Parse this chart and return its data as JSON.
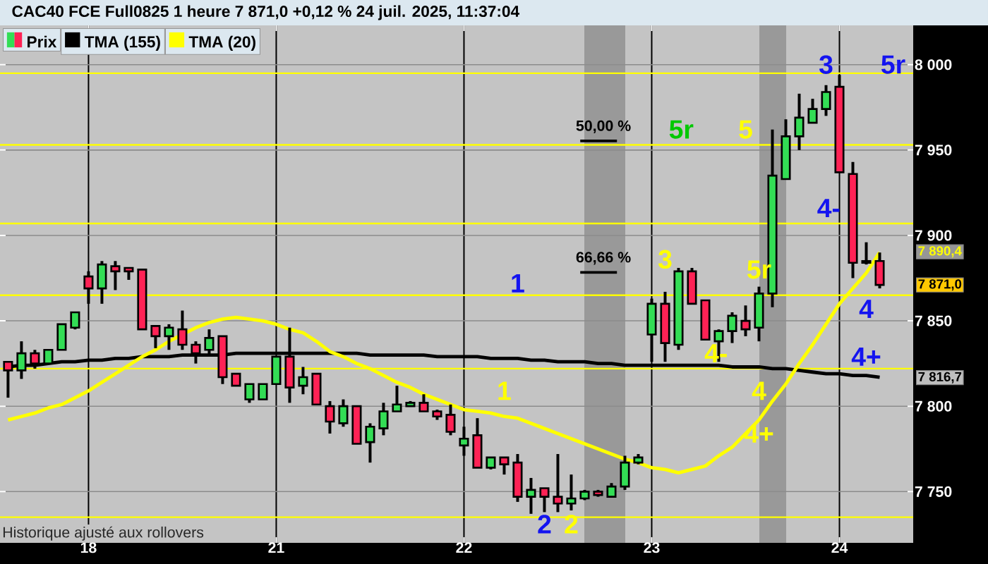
{
  "chart_data": {
    "type": "candlestick",
    "title": "CAC40 FCE Full0825 1 heure 7 871,0 +0,12 % 24 juil. 2025, 11:37:04",
    "categories": [
      null,
      null,
      null,
      null,
      null,
      null,
      "18",
      null,
      null,
      null,
      null,
      null,
      null,
      null,
      null,
      null,
      null,
      null,
      null,
      null,
      "21",
      null,
      null,
      null,
      null,
      null,
      null,
      null,
      null,
      null,
      null,
      null,
      null,
      null,
      "22",
      null,
      null,
      null,
      null,
      null,
      null,
      null,
      null,
      null,
      null,
      null,
      null,
      null,
      "23",
      null,
      null,
      null,
      null,
      null,
      null,
      null,
      null,
      null,
      null,
      null,
      null,
      null,
      "24",
      null,
      null,
      null
    ],
    "ylim": [
      7720,
      8023
    ],
    "yticks": [
      {
        "value": 7750,
        "label": "7 750"
      },
      {
        "value": 7800,
        "label": "7 800"
      },
      {
        "value": 7850,
        "label": "7 850"
      },
      {
        "value": 7900,
        "label": "7 900"
      },
      {
        "value": 7950,
        "label": "7 950"
      },
      {
        "value": 8000,
        "label": "8 000"
      }
    ],
    "grid": true,
    "legend": "top left",
    "series": [
      {
        "name": "Prix",
        "colors": [
          "#ff2255",
          "#33dd55",
          "#ff2255",
          "#33dd55",
          "#33dd55",
          "#33dd55",
          "#ff2255",
          "#33dd55",
          "#ff2255",
          "#ff2255",
          "#ff2255",
          "#ff2255",
          "#33dd55",
          "#ff2255",
          "#ff2255",
          "#33dd55",
          "#ff2255",
          "#ff2255",
          "#33dd55",
          "#33dd55",
          "#33dd55",
          "#ff2255",
          "#33dd55",
          "#ff2255",
          "#ff2255",
          "#33dd55",
          "#ff2255",
          "#33dd55",
          "#33dd55",
          "#33dd55",
          "#33dd55",
          "#ff2255",
          "#ff2255",
          "#ff2255",
          "#33dd55",
          "#ff2255",
          "#33dd55",
          "#ff2255",
          "#ff2255",
          "#33dd55",
          "#ff2255",
          "#ff2255",
          "#33dd55",
          "#33dd55",
          "#ff2255",
          "#33dd55",
          "#33dd55",
          "#33dd55",
          "#33dd55",
          "#ff2255",
          "#33dd55",
          "#ff2255",
          "#ff2255",
          "#33dd55",
          "#33dd55",
          "#ff2255",
          "#33dd55",
          "#33dd55",
          "#33dd55",
          "#33dd55",
          "#33dd55",
          "#33dd55",
          "#ff2255",
          "#ff2255",
          "#ff2255",
          "#ff2255"
        ],
        "ohlc": [
          [
            7826,
            7826,
            7805,
            7821
          ],
          [
            7821,
            7838,
            7816,
            7831
          ],
          [
            7831,
            7833,
            7822,
            7825
          ],
          [
            7825,
            7833,
            7825,
            7833
          ],
          [
            7833,
            7848,
            7833,
            7848
          ],
          [
            7846,
            7855,
            7845,
            7855
          ],
          [
            7876,
            7879,
            7860,
            7869
          ],
          [
            7869,
            7885,
            7860,
            7883
          ],
          [
            7882,
            7885,
            7868,
            7879
          ],
          [
            7881,
            7881,
            7874,
            7879
          ],
          [
            7880,
            7880,
            7845,
            7845
          ],
          [
            7847,
            7847,
            7834,
            7841
          ],
          [
            7841,
            7848,
            7833,
            7846
          ],
          [
            7845,
            7856,
            7833,
            7836
          ],
          [
            7836,
            7838,
            7825,
            7831
          ],
          [
            7833,
            7845,
            7830,
            7840
          ],
          [
            7841,
            7841,
            7813,
            7817
          ],
          [
            7819,
            7819,
            7812,
            7812
          ],
          [
            7804,
            7813,
            7802,
            7813
          ],
          [
            7804,
            7813,
            7804,
            7813
          ],
          [
            7813,
            7829,
            7813,
            7829
          ],
          [
            7829,
            7846,
            7802,
            7811
          ],
          [
            7812,
            7823,
            7807,
            7817
          ],
          [
            7819,
            7819,
            7801,
            7801
          ],
          [
            7800,
            7803,
            7784,
            7791
          ],
          [
            7790,
            7804,
            7788,
            7800
          ],
          [
            7800,
            7800,
            7778,
            7778
          ],
          [
            7779,
            7790,
            7767,
            7788
          ],
          [
            7787,
            7802,
            7783,
            7797
          ],
          [
            7797,
            7812,
            7797,
            7801
          ],
          [
            7800,
            7803,
            7800,
            7802
          ],
          [
            7802,
            7807,
            7797,
            7797
          ],
          [
            7797,
            7798,
            7792,
            7794
          ],
          [
            7795,
            7801,
            7783,
            7785
          ],
          [
            7777,
            7788,
            7771,
            7781
          ],
          [
            7783,
            7793,
            7764,
            7764
          ],
          [
            7764,
            7770,
            7763,
            7770
          ],
          [
            7770,
            7770,
            7760,
            7766
          ],
          [
            7767,
            7772,
            7744,
            7747
          ],
          [
            7747,
            7758,
            7737,
            7751
          ],
          [
            7752,
            7752,
            7738,
            7747
          ],
          [
            7747,
            7772,
            7738,
            7743
          ],
          [
            7743,
            7760,
            7739,
            7746
          ],
          [
            7746,
            7751,
            7745,
            7750
          ],
          [
            7750,
            7751,
            7747,
            7748
          ],
          [
            7747,
            7755,
            7747,
            7753
          ],
          [
            7753,
            7771,
            7751,
            7767
          ],
          [
            7767,
            7772,
            7766,
            7770
          ],
          [
            7842,
            7863,
            7826,
            7860
          ],
          [
            7860,
            7867,
            7826,
            7837
          ],
          [
            7836,
            7881,
            7833,
            7879
          ],
          [
            7879,
            7881,
            7860,
            7860
          ],
          [
            7862,
            7862,
            7839,
            7839
          ],
          [
            7838,
            7845,
            7826,
            7844
          ],
          [
            7844,
            7855,
            7837,
            7853
          ],
          [
            7850,
            7859,
            7841,
            7845
          ],
          [
            7846,
            7870,
            7838,
            7866
          ],
          [
            7866,
            7962,
            7858,
            7935
          ],
          [
            7933,
            7968,
            7933,
            7958
          ],
          [
            7958,
            7983,
            7950,
            7969
          ],
          [
            7966,
            7980,
            7966,
            7974
          ],
          [
            7974,
            7988,
            7970,
            7984
          ],
          [
            7987,
            7994,
            7937,
            7937
          ],
          [
            7936,
            7943,
            7875,
            7884
          ],
          [
            7885,
            7896,
            7883,
            7884
          ],
          [
            7885,
            7890,
            7869,
            7871
          ]
        ]
      },
      {
        "name": "TMA (155)",
        "type": "line",
        "color": "#000000",
        "values": [
          7823,
          7824,
          7824,
          7825,
          7826,
          7826,
          7827,
          7827,
          7828,
          7828,
          7829,
          7829,
          7829,
          7830,
          7830,
          7830,
          7830,
          7831,
          7831,
          7831,
          7831,
          7831,
          7831,
          7831,
          7831,
          7831,
          7831,
          7830,
          7830,
          7830,
          7830,
          7830,
          7829,
          7829,
          7829,
          7829,
          7828,
          7828,
          7828,
          7827,
          7827,
          7826,
          7826,
          7826,
          7825,
          7825,
          7824,
          7824,
          7824,
          7824,
          7824,
          7824,
          7824,
          7824,
          7823,
          7823,
          7823,
          7822,
          7822,
          7821,
          7820,
          7819,
          7819,
          7818,
          7818,
          7817
        ]
      },
      {
        "name": "TMA (20)",
        "type": "line",
        "color": "#ffff00",
        "values": [
          7792,
          7794,
          7796,
          7799,
          7801,
          7805,
          7809,
          7814,
          7819,
          7824,
          7829,
          7833,
          7838,
          7842,
          7846,
          7849,
          7851,
          7852,
          7851,
          7850,
          7848,
          7845,
          7843,
          7838,
          7832,
          7829,
          7825,
          7822,
          7818,
          7814,
          7811,
          7807,
          7804,
          7801,
          7798,
          7797,
          7796,
          7794,
          7793,
          7790,
          7787,
          7784,
          7781,
          7778,
          7775,
          7772,
          7769,
          7767,
          7764,
          7763,
          7761,
          7763,
          7765,
          7771,
          7776,
          7784,
          7792,
          7803,
          7813,
          7825,
          7836,
          7848,
          7860,
          7869,
          7878,
          7890
        ]
      }
    ],
    "ref_lines": [
      {
        "axis": "y",
        "value": 7995,
        "color": "#ffff00"
      },
      {
        "axis": "y",
        "value": 7953,
        "color": "#ffff00"
      },
      {
        "axis": "y",
        "value": 7907,
        "color": "#ffff00"
      },
      {
        "axis": "y",
        "value": 7865,
        "color": "#ffff00"
      },
      {
        "axis": "y",
        "value": 7822,
        "color": "#ffff00"
      },
      {
        "axis": "y",
        "value": 7735,
        "color": "#ffff00"
      }
    ],
    "annotations": [
      "50,00 %",
      "66,66 %",
      "1",
      "1",
      "2",
      "2",
      "3",
      "4-",
      "4",
      "4+",
      "5r",
      "5",
      "5r",
      "3",
      "5r",
      "4-",
      "4",
      "4+",
      "7 890,4",
      "7 871,0",
      "7 816,7",
      "Historique ajusté aux rollovers"
    ]
  }
}
